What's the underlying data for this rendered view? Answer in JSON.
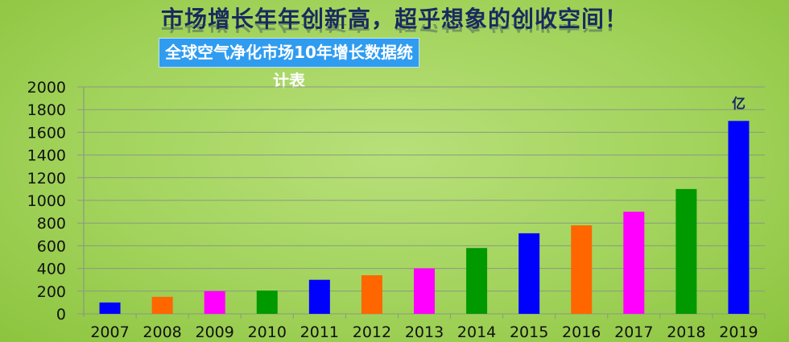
{
  "header": {
    "headline": "市场增长年年创新高，超乎想象的创收空间！",
    "subtitle": "全球空气净化市场10年增长数据统计表"
  },
  "chart_data": {
    "type": "bar",
    "title": "全球空气净化市场10年增长数据统计表",
    "categories": [
      "2007",
      "2008",
      "2009",
      "2010",
      "2011",
      "2012",
      "2013",
      "2014",
      "2015",
      "2016",
      "2017",
      "2018",
      "2019"
    ],
    "values": [
      100,
      150,
      200,
      205,
      300,
      340,
      400,
      580,
      710,
      780,
      900,
      1100,
      1700
    ],
    "colors": [
      "#0000ff",
      "#ff6600",
      "#ff00ff",
      "#009900",
      "#0000ff",
      "#ff6600",
      "#ff00ff",
      "#009900",
      "#0000ff",
      "#ff6600",
      "#ff00ff",
      "#009900",
      "#0000ff"
    ],
    "ylim": [
      0,
      2000
    ],
    "yticks": [
      "0",
      "200",
      "400",
      "600",
      "800",
      "1000",
      "1200",
      "1400",
      "1600",
      "1800",
      "2000"
    ],
    "unit_label": "亿",
    "grid": true,
    "legend": "none"
  }
}
